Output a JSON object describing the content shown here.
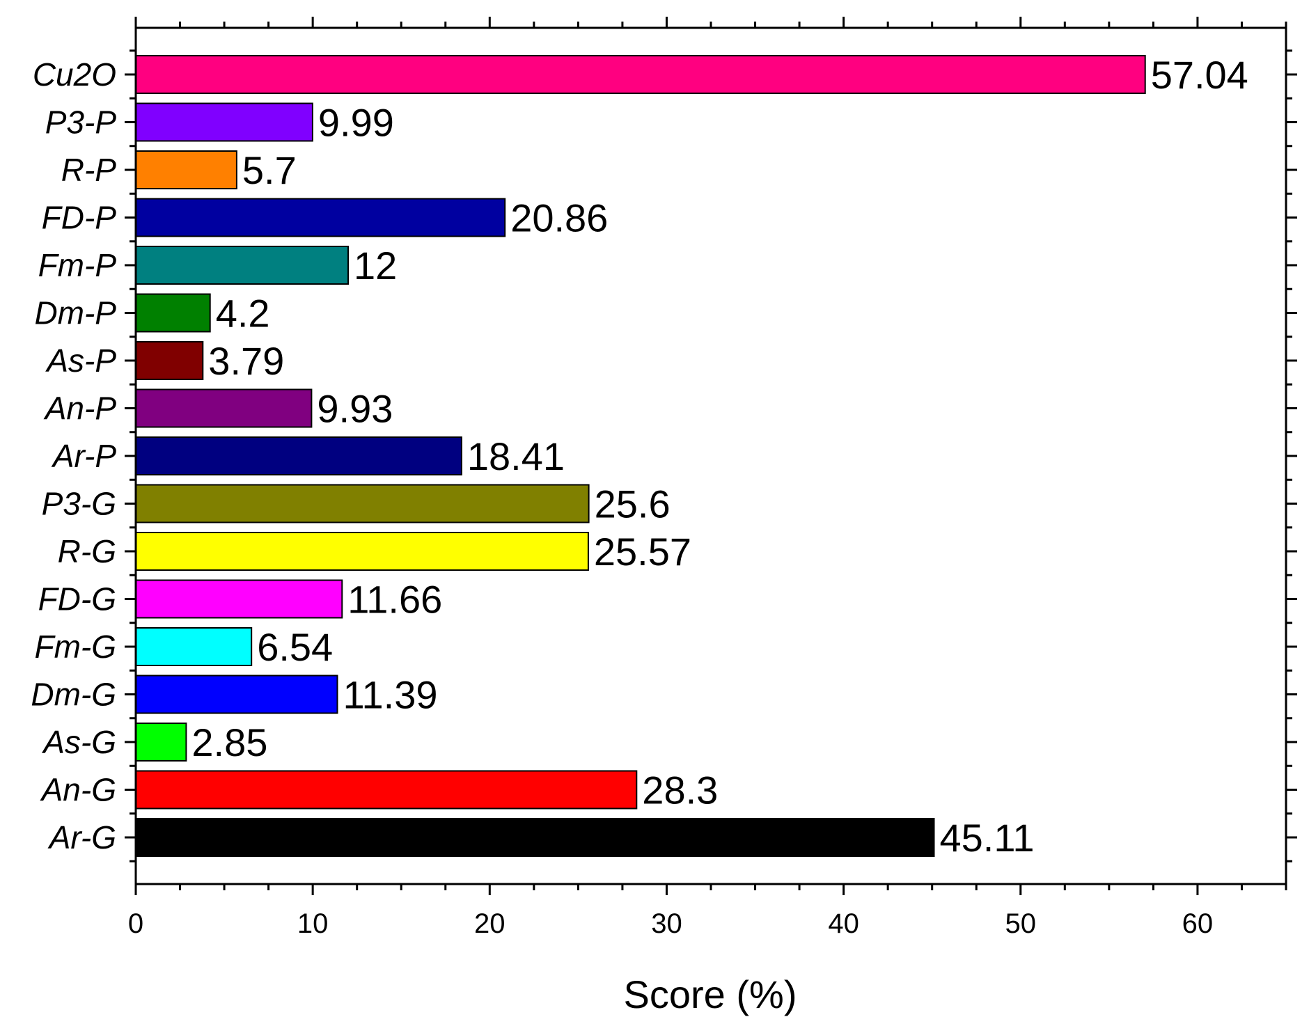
{
  "chart_data": {
    "type": "bar",
    "orientation": "horizontal",
    "xlabel": "Score (%)",
    "ylabel": "",
    "xlim": [
      0,
      65
    ],
    "xticks": [
      0,
      10,
      20,
      30,
      40,
      50,
      60
    ],
    "grid": false,
    "legend": "none",
    "categories": [
      "Cu2O",
      "P3-P",
      "R-P",
      "FD-P",
      "Fm-P",
      "Dm-P",
      "As-P",
      "An-P",
      "Ar-P",
      "P3-G",
      "R-G",
      "FD-G",
      "Fm-G",
      "Dm-G",
      "As-G",
      "An-G",
      "Ar-G"
    ],
    "values": [
      57.04,
      9.99,
      5.7,
      20.86,
      12,
      4.2,
      3.79,
      9.93,
      18.41,
      25.6,
      25.57,
      11.66,
      6.54,
      11.39,
      2.85,
      28.3,
      45.11
    ],
    "value_labels": [
      "57.04",
      "9.99",
      "5.7",
      "20.86",
      "12",
      "4.2",
      "3.79",
      "9.93",
      "18.41",
      "25.6",
      "25.57",
      "11.66",
      "6.54",
      "11.39",
      "2.85",
      "28.3",
      "45.11"
    ],
    "colors": [
      "#FF0080",
      "#8000FF",
      "#FF8000",
      "#0000A0",
      "#008080",
      "#008000",
      "#800000",
      "#800080",
      "#000080",
      "#808000",
      "#FFFF00",
      "#FF00FF",
      "#00FFFF",
      "#0000FF",
      "#00FF00",
      "#FF0000",
      "#000000"
    ],
    "tick_labels": [
      "0",
      "10",
      "20",
      "30",
      "40",
      "50",
      "60"
    ]
  }
}
